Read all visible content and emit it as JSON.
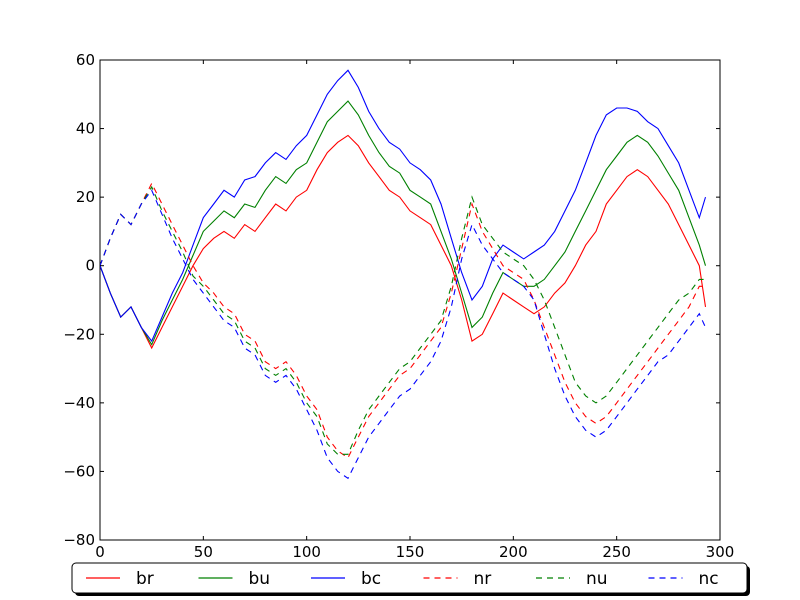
{
  "chart_data": {
    "type": "line",
    "title": "",
    "xlabel": "",
    "ylabel": "",
    "xlim": [
      0,
      300
    ],
    "ylim": [
      -80,
      60
    ],
    "xticks": [
      0,
      50,
      100,
      150,
      200,
      250,
      300
    ],
    "yticks": [
      -80,
      -60,
      -40,
      -20,
      0,
      20,
      40,
      60
    ],
    "xtick_labels": [
      "0",
      "50",
      "100",
      "150",
      "200",
      "250",
      "300"
    ],
    "ytick_labels": [
      "−80",
      "−60",
      "−40",
      "−20",
      "0",
      "20",
      "40",
      "60"
    ],
    "grid": false,
    "legend_position": "bottom",
    "series": [
      {
        "name": "br",
        "color": "#ff0000",
        "dashed": false,
        "x": [
          0,
          5,
          10,
          15,
          20,
          25,
          30,
          35,
          40,
          45,
          50,
          55,
          60,
          65,
          70,
          75,
          80,
          85,
          90,
          95,
          100,
          105,
          110,
          115,
          120,
          125,
          130,
          135,
          140,
          145,
          150,
          155,
          160,
          165,
          170,
          175,
          180,
          185,
          190,
          195,
          200,
          205,
          210,
          215,
          220,
          225,
          230,
          235,
          240,
          245,
          250,
          255,
          260,
          265,
          270,
          275,
          280,
          285,
          290,
          293
        ],
        "y": [
          0,
          -8,
          -15,
          -12,
          -18,
          -24,
          -18,
          -12,
          -6,
          0,
          5,
          8,
          10,
          8,
          12,
          10,
          14,
          18,
          16,
          20,
          22,
          28,
          33,
          36,
          38,
          35,
          30,
          26,
          22,
          20,
          16,
          14,
          12,
          6,
          0,
          -10,
          -22,
          -20,
          -14,
          -8,
          -10,
          -12,
          -14,
          -12,
          -8,
          -5,
          0,
          6,
          10,
          18,
          22,
          26,
          28,
          26,
          22,
          18,
          12,
          6,
          0,
          -12
        ]
      },
      {
        "name": "bu",
        "color": "#008000",
        "dashed": false,
        "x": [
          0,
          5,
          10,
          15,
          20,
          25,
          30,
          35,
          40,
          45,
          50,
          55,
          60,
          65,
          70,
          75,
          80,
          85,
          90,
          95,
          100,
          105,
          110,
          115,
          120,
          125,
          130,
          135,
          140,
          145,
          150,
          155,
          160,
          165,
          170,
          175,
          180,
          185,
          190,
          195,
          200,
          205,
          210,
          215,
          220,
          225,
          230,
          235,
          240,
          245,
          250,
          255,
          260,
          265,
          270,
          275,
          280,
          285,
          290,
          293
        ],
        "y": [
          0,
          -8,
          -15,
          -12,
          -18,
          -23,
          -16,
          -10,
          -4,
          3,
          10,
          13,
          16,
          14,
          18,
          17,
          22,
          26,
          24,
          28,
          30,
          36,
          42,
          45,
          48,
          44,
          38,
          33,
          29,
          27,
          22,
          20,
          18,
          10,
          2,
          -8,
          -18,
          -15,
          -8,
          -2,
          -4,
          -6,
          -6,
          -4,
          0,
          4,
          10,
          16,
          22,
          28,
          32,
          36,
          38,
          36,
          32,
          27,
          22,
          14,
          6,
          0
        ]
      },
      {
        "name": "bc",
        "color": "#0000ff",
        "dashed": false,
        "x": [
          0,
          5,
          10,
          15,
          20,
          25,
          30,
          35,
          40,
          45,
          50,
          55,
          60,
          65,
          70,
          75,
          80,
          85,
          90,
          95,
          100,
          105,
          110,
          115,
          120,
          125,
          130,
          135,
          140,
          145,
          150,
          155,
          160,
          165,
          170,
          175,
          180,
          185,
          190,
          195,
          200,
          205,
          210,
          215,
          220,
          225,
          230,
          235,
          240,
          245,
          250,
          255,
          260,
          265,
          270,
          275,
          280,
          285,
          290,
          293
        ],
        "y": [
          0,
          -8,
          -15,
          -12,
          -18,
          -22,
          -15,
          -8,
          -2,
          6,
          14,
          18,
          22,
          20,
          25,
          26,
          30,
          33,
          31,
          35,
          38,
          44,
          50,
          54,
          57,
          52,
          45,
          40,
          36,
          34,
          30,
          28,
          25,
          18,
          8,
          -2,
          -10,
          -6,
          2,
          6,
          4,
          2,
          4,
          6,
          10,
          16,
          22,
          30,
          38,
          44,
          46,
          46,
          45,
          42,
          40,
          35,
          30,
          22,
          14,
          20
        ]
      },
      {
        "name": "nr",
        "color": "#ff0000",
        "dashed": true,
        "x": [
          0,
          5,
          10,
          15,
          20,
          25,
          30,
          35,
          40,
          45,
          50,
          55,
          60,
          65,
          70,
          75,
          80,
          85,
          90,
          95,
          100,
          105,
          110,
          115,
          120,
          125,
          130,
          135,
          140,
          145,
          150,
          155,
          160,
          165,
          170,
          175,
          180,
          185,
          190,
          195,
          200,
          205,
          210,
          215,
          220,
          225,
          230,
          235,
          240,
          245,
          250,
          255,
          260,
          265,
          270,
          275,
          280,
          285,
          290,
          293
        ],
        "y": [
          0,
          8,
          15,
          12,
          18,
          24,
          18,
          12,
          6,
          0,
          -5,
          -8,
          -12,
          -14,
          -20,
          -22,
          -28,
          -30,
          -28,
          -32,
          -38,
          -42,
          -50,
          -54,
          -56,
          -50,
          -44,
          -40,
          -36,
          -32,
          -30,
          -26,
          -22,
          -18,
          -8,
          5,
          18,
          10,
          5,
          0,
          -2,
          -4,
          -10,
          -18,
          -26,
          -34,
          -40,
          -44,
          -46,
          -44,
          -40,
          -36,
          -32,
          -28,
          -24,
          -20,
          -16,
          -12,
          -6,
          -6
        ]
      },
      {
        "name": "nu",
        "color": "#008000",
        "dashed": true,
        "x": [
          0,
          5,
          10,
          15,
          20,
          25,
          30,
          35,
          40,
          45,
          50,
          55,
          60,
          65,
          70,
          75,
          80,
          85,
          90,
          95,
          100,
          105,
          110,
          115,
          120,
          125,
          130,
          135,
          140,
          145,
          150,
          155,
          160,
          165,
          170,
          175,
          180,
          185,
          190,
          195,
          200,
          205,
          210,
          215,
          220,
          225,
          230,
          235,
          240,
          245,
          250,
          255,
          260,
          265,
          270,
          275,
          280,
          285,
          290,
          293
        ],
        "y": [
          0,
          8,
          15,
          12,
          18,
          23,
          16,
          10,
          4,
          -3,
          -6,
          -10,
          -14,
          -16,
          -22,
          -24,
          -30,
          -32,
          -30,
          -34,
          -40,
          -44,
          -52,
          -55,
          -55,
          -48,
          -42,
          -38,
          -34,
          -30,
          -28,
          -24,
          -20,
          -16,
          -6,
          8,
          20,
          12,
          8,
          4,
          2,
          0,
          -4,
          -10,
          -18,
          -26,
          -34,
          -38,
          -40,
          -38,
          -34,
          -30,
          -26,
          -22,
          -18,
          -14,
          -10,
          -8,
          -4,
          -4
        ]
      },
      {
        "name": "nc",
        "color": "#0000ff",
        "dashed": true,
        "x": [
          0,
          5,
          10,
          15,
          20,
          25,
          30,
          35,
          40,
          45,
          50,
          55,
          60,
          65,
          70,
          75,
          80,
          85,
          90,
          95,
          100,
          105,
          110,
          115,
          120,
          125,
          130,
          135,
          140,
          145,
          150,
          155,
          160,
          165,
          170,
          175,
          180,
          185,
          190,
          195,
          200,
          205,
          210,
          215,
          220,
          225,
          230,
          235,
          240,
          245,
          250,
          255,
          260,
          265,
          270,
          275,
          280,
          285,
          290,
          293
        ],
        "y": [
          0,
          8,
          15,
          12,
          18,
          22,
          15,
          8,
          2,
          -4,
          -8,
          -12,
          -16,
          -18,
          -24,
          -26,
          -32,
          -34,
          -32,
          -36,
          -42,
          -48,
          -56,
          -60,
          -62,
          -56,
          -50,
          -46,
          -42,
          -38,
          -36,
          -32,
          -28,
          -22,
          -12,
          2,
          12,
          6,
          2,
          -2,
          -4,
          -6,
          -10,
          -20,
          -30,
          -38,
          -44,
          -48,
          -50,
          -48,
          -44,
          -40,
          -36,
          -32,
          -28,
          -26,
          -22,
          -18,
          -14,
          -18
        ]
      }
    ]
  }
}
